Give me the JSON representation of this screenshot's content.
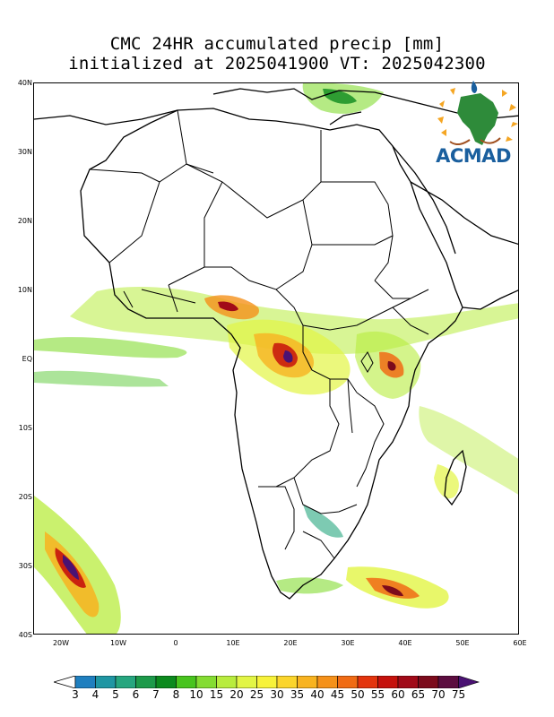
{
  "title_line1": "CMC 24HR accumulated precip [mm]",
  "title_line2": "initialized at 2025041900 VT: 2025042300",
  "logo_text": "ACMAD",
  "lat_labels": [
    "40N",
    "30N",
    "20N",
    "10N",
    "EQ",
    "10S",
    "20S",
    "30S",
    "40S"
  ],
  "lon_labels": [
    "20W",
    "10W",
    "0",
    "10E",
    "20E",
    "30E",
    "40E",
    "50E",
    "60E"
  ],
  "colorbar": {
    "levels": [
      "3",
      "4",
      "5",
      "6",
      "7",
      "8",
      "10",
      "15",
      "20",
      "25",
      "30",
      "35",
      "40",
      "45",
      "50",
      "55",
      "60",
      "65",
      "70",
      "75"
    ],
    "colors": [
      "#1f7fbf",
      "#1f96a3",
      "#26a67f",
      "#1d9a4a",
      "#0c8a1e",
      "#48c41e",
      "#84dc32",
      "#b8ec3e",
      "#e2f545",
      "#f7f23a",
      "#fbd52c",
      "#f8b320",
      "#f5911a",
      "#f06b14",
      "#e3340d",
      "#c5110c",
      "#a10a18",
      "#7c0b1c",
      "#5c0d40",
      "#4a1273"
    ]
  }
}
